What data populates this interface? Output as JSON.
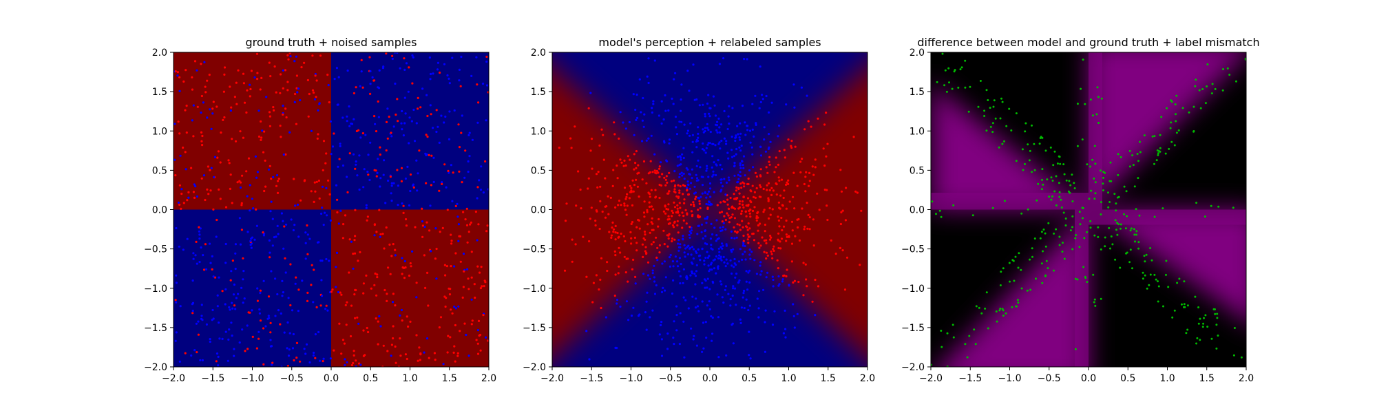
{
  "chart_data": [
    {
      "type": "heatmap",
      "title": "ground truth + noised samples",
      "xlabel": "",
      "ylabel": "",
      "xlim": [
        -2.0,
        2.0
      ],
      "ylim": [
        -2.0,
        2.0
      ],
      "xticks": [
        "−2.0",
        "−1.5",
        "−1.0",
        "−0.5",
        "0.0",
        "0.5",
        "1.0",
        "1.5",
        "2.0"
      ],
      "yticks": [
        "−2.0",
        "−1.5",
        "−1.0",
        "−0.5",
        "0.0",
        "0.5",
        "1.0",
        "1.5",
        "2.0"
      ],
      "background": "quadrants: red where x*y<0, blue where x*y>0",
      "colors": {
        "red": "#800000",
        "blue": "#00007f"
      },
      "point_colors": {
        "red": "#ff0000",
        "blue": "#0000ff"
      },
      "points": "≈1000 samples uniformly in [-2,2]², labelled by quadrant with label noise",
      "grid": false
    },
    {
      "type": "heatmap",
      "title": "model's perception + relabeled samples",
      "xlabel": "",
      "ylabel": "",
      "xlim": [
        -2.0,
        2.0
      ],
      "ylim": [
        -2.0,
        2.0
      ],
      "xticks": [
        "−2.0",
        "−1.5",
        "−1.0",
        "−0.5",
        "0.0",
        "0.5",
        "1.0",
        "1.5",
        "2.0"
      ],
      "yticks": [
        "−2.0",
        "−1.5",
        "−1.0",
        "−0.5",
        "0.0",
        "0.5",
        "1.0",
        "1.5",
        "2.0"
      ],
      "background": "red where |x|>|y| (left/right wedges), blue where |y|>|x| (top/bottom wedges), smooth transition",
      "colors": {
        "red": "#800000",
        "blue": "#00007f"
      },
      "point_colors": {
        "red": "#ff0000",
        "blue": "#0000ff"
      },
      "points": "samples concentrated near center, red in left/right wedges, blue in top/bottom wedges",
      "grid": false
    },
    {
      "type": "heatmap",
      "title": "difference between model and ground truth + label mismatch",
      "xlabel": "",
      "ylabel": "",
      "xlim": [
        -2.0,
        2.0
      ],
      "ylim": [
        -2.0,
        2.0
      ],
      "xticks": [
        "−2.0",
        "−1.5",
        "−1.0",
        "−0.5",
        "0.0",
        "0.5",
        "1.0",
        "1.5",
        "2.0"
      ],
      "yticks": [
        "−2.0",
        "−1.5",
        "−1.0",
        "−0.5",
        "0.0",
        "0.5",
        "1.0",
        "1.5",
        "2.0"
      ],
      "background": "magenta where model disagrees with ground truth, black where they agree",
      "colors": {
        "magenta": "#800080",
        "black": "#000000"
      },
      "point_colors": {
        "mismatch": "#00bb00"
      },
      "points": "≈400 green mismatch samples concentrated along the diagonals and the positive x-axis band",
      "grid": false
    }
  ]
}
